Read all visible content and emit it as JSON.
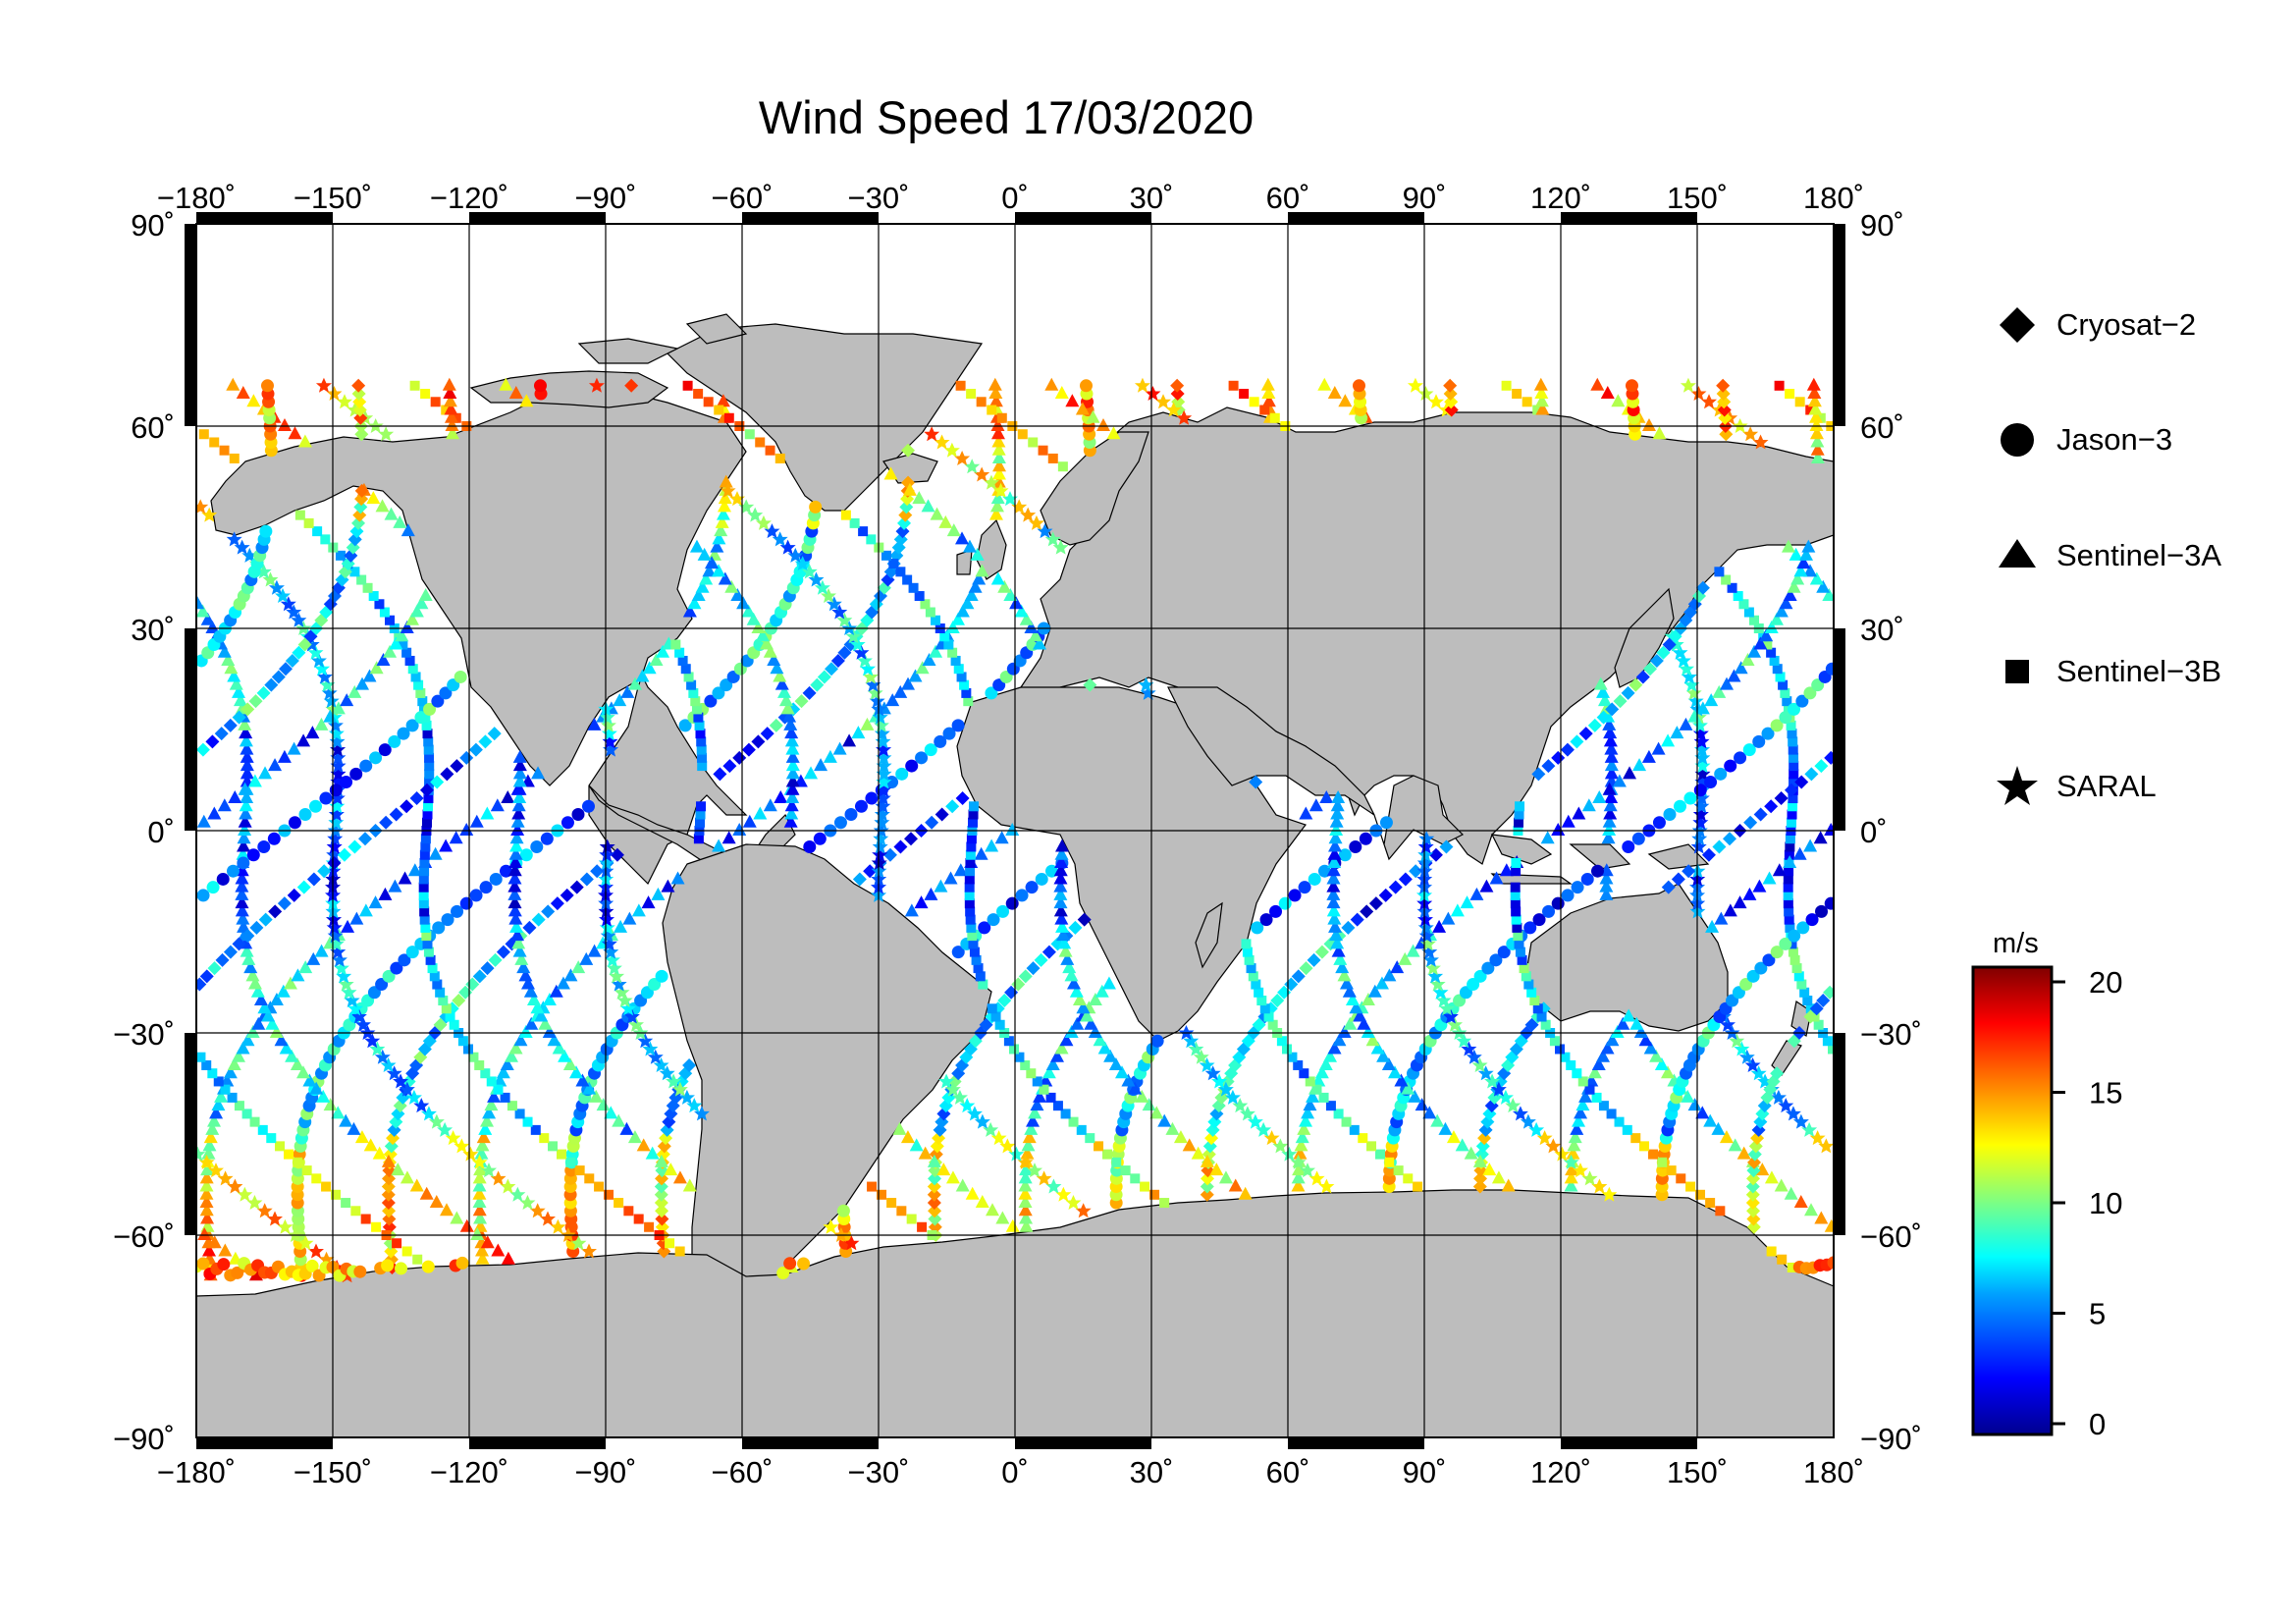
{
  "title": "Wind Speed 17/03/2020",
  "lon_ticks": [
    "−180˚",
    "−150˚",
    "−120˚",
    "−90˚",
    "−60˚",
    "−30˚",
    "0˚",
    "30˚",
    "60˚",
    "90˚",
    "120˚",
    "150˚",
    "180˚"
  ],
  "lat_ticks": [
    "90˚",
    "60˚",
    "30˚",
    "0˚",
    "−30˚",
    "−60˚",
    "−90˚"
  ],
  "legend": [
    {
      "label": "Cryosat−2",
      "icon": "diamond-icon"
    },
    {
      "label": "Jason−3",
      "icon": "circle-icon"
    },
    {
      "label": "Sentinel−3A",
      "icon": "triangle-icon"
    },
    {
      "label": "Sentinel−3B",
      "icon": "square-icon"
    },
    {
      "label": "SARAL",
      "icon": "star-icon"
    }
  ],
  "colorbar": {
    "unit": "m/s",
    "ticks": [
      "0",
      "5",
      "10",
      "15",
      "20"
    ],
    "range": [
      0,
      20
    ],
    "colors": [
      "#00008f",
      "#0000ff",
      "#00a0ff",
      "#00ffff",
      "#80ff80",
      "#ffff00",
      "#ff8000",
      "#ff0000",
      "#800000"
    ]
  },
  "colors": {
    "land": "#bdbdbd",
    "ocean": "#ffffff",
    "frame": "#000000"
  }
}
